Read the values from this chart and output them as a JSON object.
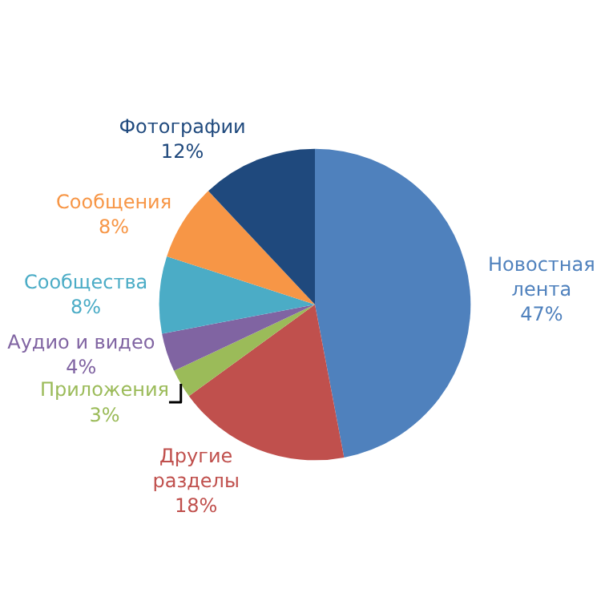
{
  "chart_data": {
    "type": "pie",
    "categories": [
      "Новостная\nлента",
      "Другие\nразделы",
      "Приложения",
      "Аудио и видео",
      "Сообщества",
      "Сообщения",
      "Фотографии"
    ],
    "values": [
      47,
      18,
      3,
      4,
      8,
      8,
      12
    ],
    "value_labels": [
      "47%",
      "18%",
      "3%",
      "4%",
      "8%",
      "8%",
      "12%"
    ],
    "colors": [
      "#4f81bd",
      "#c0504d",
      "#9bbb59",
      "#8064a2",
      "#4bacc6",
      "#f79646",
      "#1f497d"
    ],
    "legend": false
  }
}
